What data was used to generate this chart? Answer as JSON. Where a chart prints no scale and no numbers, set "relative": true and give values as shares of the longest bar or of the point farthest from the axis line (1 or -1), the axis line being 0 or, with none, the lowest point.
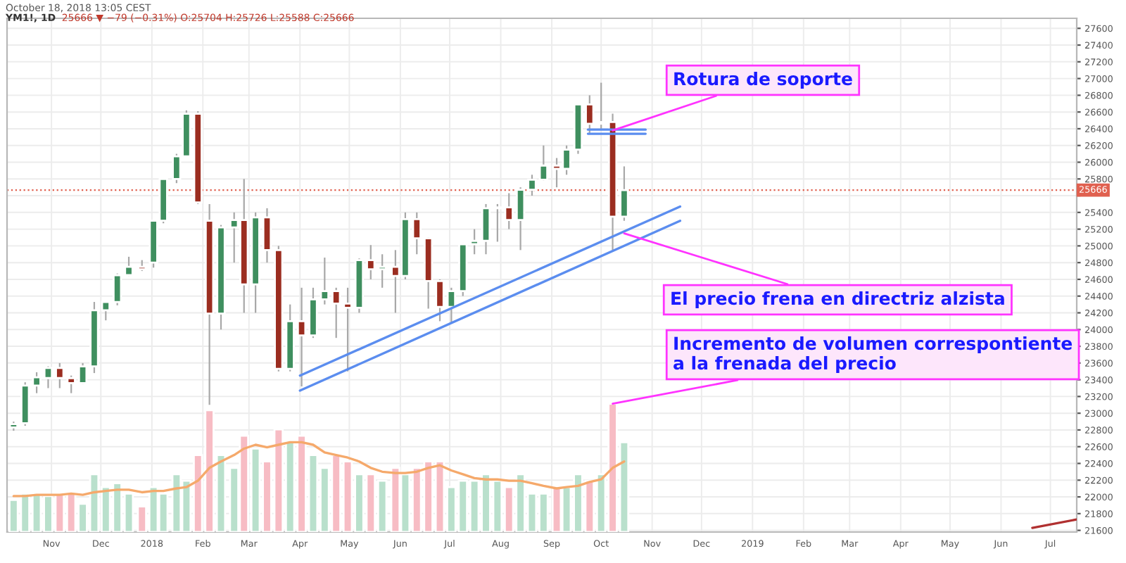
{
  "chart_data": [
    {
      "type": "candlestick",
      "title": "YM1!, 1D",
      "subtitle": "25666 ▼ −79 (−0.31%) O:25704 H:25726 L:25588 C:25666",
      "x": [
        "2017-10-09",
        "2017-10-16",
        "2017-10-23",
        "2017-10-30",
        "2017-11-06",
        "2017-11-13",
        "2017-11-20",
        "2017-11-27",
        "2017-12-04",
        "2017-12-11",
        "2017-12-18",
        "2017-12-26",
        "2018-01-02",
        "2018-01-08",
        "2018-01-16",
        "2018-01-22",
        "2018-01-29",
        "2018-02-05",
        "2018-02-12",
        "2018-02-20",
        "2018-02-26",
        "2018-03-05",
        "2018-03-12",
        "2018-03-19",
        "2018-03-26",
        "2018-04-02",
        "2018-04-09",
        "2018-04-16",
        "2018-04-23",
        "2018-04-30",
        "2018-05-07",
        "2018-05-14",
        "2018-05-21",
        "2018-05-29",
        "2018-06-04",
        "2018-06-11",
        "2018-06-18",
        "2018-06-25",
        "2018-07-02",
        "2018-07-09",
        "2018-07-16",
        "2018-07-23",
        "2018-07-30",
        "2018-08-06",
        "2018-08-13",
        "2018-08-20",
        "2018-08-27",
        "2018-09-04",
        "2018-09-10",
        "2018-09-17",
        "2018-09-24",
        "2018-10-01",
        "2018-10-08",
        "2018-10-15"
      ],
      "ohlc": [
        [
          22830,
          22900,
          22790,
          22870
        ],
        [
          22880,
          23370,
          22850,
          23330
        ],
        [
          23330,
          23490,
          23240,
          23430
        ],
        [
          23420,
          23560,
          23300,
          23540
        ],
        [
          23540,
          23600,
          23300,
          23420
        ],
        [
          23420,
          23450,
          23240,
          23360
        ],
        [
          23360,
          23600,
          23350,
          23560
        ],
        [
          23560,
          24330,
          23480,
          24230
        ],
        [
          24230,
          24330,
          24110,
          24330
        ],
        [
          24330,
          24670,
          24290,
          24650
        ],
        [
          24650,
          24870,
          24640,
          24750
        ],
        [
          24750,
          24830,
          24700,
          24720
        ],
        [
          24800,
          25300,
          24740,
          25300
        ],
        [
          25300,
          25800,
          25270,
          25800
        ],
        [
          25800,
          26100,
          25750,
          26070
        ],
        [
          26070,
          26620,
          26070,
          26580
        ],
        [
          26580,
          26610,
          25500,
          25520
        ],
        [
          25300,
          25500,
          23100,
          24190
        ],
        [
          24190,
          25250,
          24000,
          25220
        ],
        [
          25220,
          25400,
          24800,
          25310
        ],
        [
          25310,
          25800,
          24200,
          24540
        ],
        [
          24540,
          25400,
          24200,
          25340
        ],
        [
          25340,
          25450,
          24800,
          24950
        ],
        [
          24950,
          25000,
          23500,
          23530
        ],
        [
          23530,
          24300,
          23500,
          24100
        ],
        [
          24100,
          24500,
          23320,
          23930
        ],
        [
          23930,
          24500,
          23900,
          24360
        ],
        [
          24360,
          24860,
          24300,
          24460
        ],
        [
          24460,
          24500,
          23900,
          24310
        ],
        [
          24310,
          24500,
          23500,
          24260
        ],
        [
          24260,
          24850,
          24200,
          24830
        ],
        [
          24830,
          25010,
          24600,
          24720
        ],
        [
          24720,
          24900,
          24500,
          24750
        ],
        [
          24750,
          24950,
          24200,
          24640
        ],
        [
          24640,
          25400,
          24600,
          25320
        ],
        [
          25320,
          25400,
          24900,
          25090
        ],
        [
          25090,
          25100,
          24250,
          24580
        ],
        [
          24580,
          24600,
          24100,
          24270
        ],
        [
          24270,
          24500,
          24080,
          24460
        ],
        [
          24460,
          25030,
          24400,
          25020
        ],
        [
          25020,
          25200,
          24900,
          25060
        ],
        [
          25060,
          25500,
          24900,
          25450
        ],
        [
          25450,
          25500,
          25050,
          25460
        ],
        [
          25460,
          25630,
          25200,
          25310
        ],
        [
          25310,
          25700,
          24950,
          25670
        ],
        [
          25670,
          25850,
          25600,
          25790
        ],
        [
          25790,
          26200,
          25780,
          25960
        ],
        [
          25960,
          26050,
          25700,
          25920
        ],
        [
          25920,
          26200,
          25850,
          26150
        ],
        [
          26150,
          26700,
          26100,
          26690
        ],
        [
          26690,
          26800,
          26350,
          26460
        ],
        [
          26460,
          26950,
          26400,
          26480
        ],
        [
          26480,
          26580,
          24950,
          25350
        ],
        [
          25350,
          25950,
          25300,
          25666
        ]
      ],
      "colors": [
        "#3f8f5f",
        "#3f8f5f",
        "#3f8f5f",
        "#3f8f5f",
        "#9b2d20",
        "#9b2d20",
        "#3f8f5f",
        "#3f8f5f",
        "#3f8f5f",
        "#3f8f5f",
        "#3f8f5f",
        "#9b2d20",
        "#3f8f5f",
        "#3f8f5f",
        "#3f8f5f",
        "#3f8f5f",
        "#9b2d20",
        "#9b2d20",
        "#3f8f5f",
        "#3f8f5f",
        "#9b2d20",
        "#3f8f5f",
        "#9b2d20",
        "#9b2d20",
        "#3f8f5f",
        "#9b2d20",
        "#3f8f5f",
        "#3f8f5f",
        "#9b2d20",
        "#9b2d20",
        "#3f8f5f",
        "#9b2d20",
        "#3f8f5f",
        "#9b2d20",
        "#3f8f5f",
        "#9b2d20",
        "#9b2d20",
        "#9b2d20",
        "#3f8f5f",
        "#3f8f5f",
        "#3f8f5f",
        "#3f8f5f",
        "#3f8f5f",
        "#9b2d20",
        "#3f8f5f",
        "#3f8f5f",
        "#3f8f5f",
        "#9b2d20",
        "#3f8f5f",
        "#3f8f5f",
        "#9b2d20",
        "#3f8f5f",
        "#9b2d20",
        "#3f8f5f"
      ],
      "series": [
        {
          "type": "line",
          "color": "#5b8def",
          "x": [
            "2018-04-01",
            "2018-11-18"
          ],
          "values": [
            23270,
            25300
          ]
        },
        {
          "type": "line",
          "color": "#5b8def",
          "x": [
            "2018-04-01",
            "2018-11-18"
          ],
          "values": [
            23450,
            25470
          ]
        },
        {
          "type": "line",
          "color": "#5b8def",
          "x": [
            "2018-09-23",
            "2018-10-28"
          ],
          "values": [
            26340,
            26340
          ]
        },
        {
          "type": "line",
          "color": "#5b8def",
          "x": [
            "2018-09-23",
            "2018-10-28"
          ],
          "values": [
            26390,
            26390
          ]
        },
        {
          "type": "line",
          "color": "#b03030",
          "x": [
            "2019-06-20",
            "2019-07-17"
          ],
          "values": [
            21630,
            21730
          ]
        }
      ],
      "ref_lines": [
        {
          "axis": "y",
          "value": 25666,
          "label": "25666",
          "color": "#e0604f",
          "line_style": "dotted"
        }
      ],
      "annotations": [
        "October 18, 2018 13:05 CEST",
        {
          "text": "Rotura de soporte",
          "x": "2018-10-08",
          "y": 26380
        },
        {
          "text": "El precio frena en directriz alzista",
          "x": "2018-10-15",
          "y": 25150
        }
      ],
      "xlim": [
        "2017-10-05",
        "2019-07-17"
      ],
      "xticks": [
        {
          "value": "2017-11-01",
          "label": "Nov"
        },
        {
          "value": "2017-12-01",
          "label": "Dec"
        },
        {
          "value": "2018-01-01",
          "label": "2018"
        },
        {
          "value": "2018-02-01",
          "label": "Feb"
        },
        {
          "value": "2018-03-01",
          "label": "Mar"
        },
        {
          "value": "2018-04-01",
          "label": "Apr"
        },
        {
          "value": "2018-05-01",
          "label": "May"
        },
        {
          "value": "2018-06-01",
          "label": "Jun"
        },
        {
          "value": "2018-07-01",
          "label": "Jul"
        },
        {
          "value": "2018-08-01",
          "label": "Aug"
        },
        {
          "value": "2018-09-01",
          "label": "Sep"
        },
        {
          "value": "2018-10-01",
          "label": "Oct"
        },
        {
          "value": "2018-11-01",
          "label": "Nov"
        },
        {
          "value": "2018-12-01",
          "label": "Dec"
        },
        {
          "value": "2019-01-01",
          "label": "2019"
        },
        {
          "value": "2019-02-01",
          "label": "Feb"
        },
        {
          "value": "2019-03-01",
          "label": "Mar"
        },
        {
          "value": "2019-04-01",
          "label": "Apr"
        },
        {
          "value": "2019-05-01",
          "label": "May"
        },
        {
          "value": "2019-06-01",
          "label": "Jun"
        },
        {
          "value": "2019-07-01",
          "label": "Jul"
        }
      ],
      "ylim": [
        21580,
        27720
      ],
      "yticks": [
        21600,
        21800,
        22000,
        22200,
        22400,
        22600,
        22800,
        23000,
        23200,
        23400,
        23600,
        23800,
        24000,
        24200,
        24400,
        24600,
        24800,
        25000,
        25200,
        25400,
        {
          "value": 25600,
          "label": null
        },
        25800,
        26000,
        26200,
        26400,
        26600,
        26800,
        27000,
        27200,
        27400,
        27600
      ],
      "grid": true,
      "legend": false
    },
    {
      "type": "bar",
      "relative": true,
      "tick_labels": false,
      "xlim": [
        "2017-10-05",
        "2019-07-17"
      ],
      "x": [
        "2017-10-09",
        "2017-10-16",
        "2017-10-23",
        "2017-10-30",
        "2017-11-06",
        "2017-11-13",
        "2017-11-20",
        "2017-11-27",
        "2017-12-04",
        "2017-12-11",
        "2017-12-18",
        "2017-12-26",
        "2018-01-02",
        "2018-01-08",
        "2018-01-16",
        "2018-01-22",
        "2018-01-29",
        "2018-02-05",
        "2018-02-12",
        "2018-02-20",
        "2018-02-26",
        "2018-03-05",
        "2018-03-12",
        "2018-03-19",
        "2018-03-26",
        "2018-04-02",
        "2018-04-09",
        "2018-04-16",
        "2018-04-23",
        "2018-04-30",
        "2018-05-07",
        "2018-05-14",
        "2018-05-21",
        "2018-05-29",
        "2018-06-04",
        "2018-06-11",
        "2018-06-18",
        "2018-06-25",
        "2018-07-02",
        "2018-07-09",
        "2018-07-16",
        "2018-07-23",
        "2018-07-30",
        "2018-08-06",
        "2018-08-13",
        "2018-08-20",
        "2018-08-27",
        "2018-09-04",
        "2018-09-10",
        "2018-09-17",
        "2018-09-24",
        "2018-10-01",
        "2018-10-08",
        "2018-10-15"
      ],
      "series": [
        {
          "type": "bar",
          "values": [
            0.25,
            0.3,
            0.3,
            0.28,
            0.3,
            0.3,
            0.22,
            0.45,
            0.35,
            0.38,
            0.3,
            0.2,
            0.35,
            0.3,
            0.45,
            0.4,
            0.6,
            0.95,
            0.6,
            0.5,
            0.75,
            0.65,
            0.55,
            0.8,
            0.7,
            0.75,
            0.6,
            0.5,
            0.6,
            0.55,
            0.45,
            0.45,
            0.4,
            0.5,
            0.45,
            0.5,
            0.55,
            0.55,
            0.35,
            0.4,
            0.4,
            0.45,
            0.4,
            0.35,
            0.45,
            0.3,
            0.3,
            0.35,
            0.35,
            0.45,
            0.4,
            0.45,
            1.0,
            0.7
          ],
          "colors": [
            "#b9e0cc",
            "#b9e0cc",
            "#b9e0cc",
            "#b9e0cc",
            "#f7bcc4",
            "#f7bcc4",
            "#b9e0cc",
            "#b9e0cc",
            "#b9e0cc",
            "#b9e0cc",
            "#b9e0cc",
            "#f7bcc4",
            "#b9e0cc",
            "#b9e0cc",
            "#b9e0cc",
            "#b9e0cc",
            "#f7bcc4",
            "#f7bcc4",
            "#b9e0cc",
            "#b9e0cc",
            "#f7bcc4",
            "#b9e0cc",
            "#f7bcc4",
            "#f7bcc4",
            "#b9e0cc",
            "#f7bcc4",
            "#b9e0cc",
            "#b9e0cc",
            "#f7bcc4",
            "#f7bcc4",
            "#b9e0cc",
            "#f7bcc4",
            "#b9e0cc",
            "#f7bcc4",
            "#b9e0cc",
            "#f7bcc4",
            "#f7bcc4",
            "#f7bcc4",
            "#b9e0cc",
            "#b9e0cc",
            "#b9e0cc",
            "#b9e0cc",
            "#b9e0cc",
            "#f7bcc4",
            "#b9e0cc",
            "#b9e0cc",
            "#b9e0cc",
            "#f7bcc4",
            "#b9e0cc",
            "#b9e0cc",
            "#f7bcc4",
            "#b9e0cc",
            "#f7bcc4",
            "#b9e0cc"
          ]
        },
        {
          "type": "line",
          "color": "#f5a96b",
          "values": [
            0.28,
            0.28,
            0.29,
            0.29,
            0.29,
            0.3,
            0.29,
            0.31,
            0.32,
            0.33,
            0.33,
            0.31,
            0.32,
            0.32,
            0.34,
            0.35,
            0.4,
            0.5,
            0.55,
            0.6,
            0.65,
            0.68,
            0.66,
            0.68,
            0.7,
            0.7,
            0.68,
            0.62,
            0.6,
            0.58,
            0.55,
            0.5,
            0.47,
            0.46,
            0.46,
            0.47,
            0.5,
            0.52,
            0.48,
            0.45,
            0.42,
            0.41,
            0.41,
            0.4,
            0.4,
            0.38,
            0.36,
            0.34,
            0.35,
            0.36,
            0.39,
            0.41,
            0.5,
            0.55
          ]
        }
      ],
      "annotations": [
        {
          "text": "Incremento de volumen correspontiente\na la frenada del precio",
          "x": "2018-10-08",
          "y": 1.0
        }
      ]
    }
  ]
}
